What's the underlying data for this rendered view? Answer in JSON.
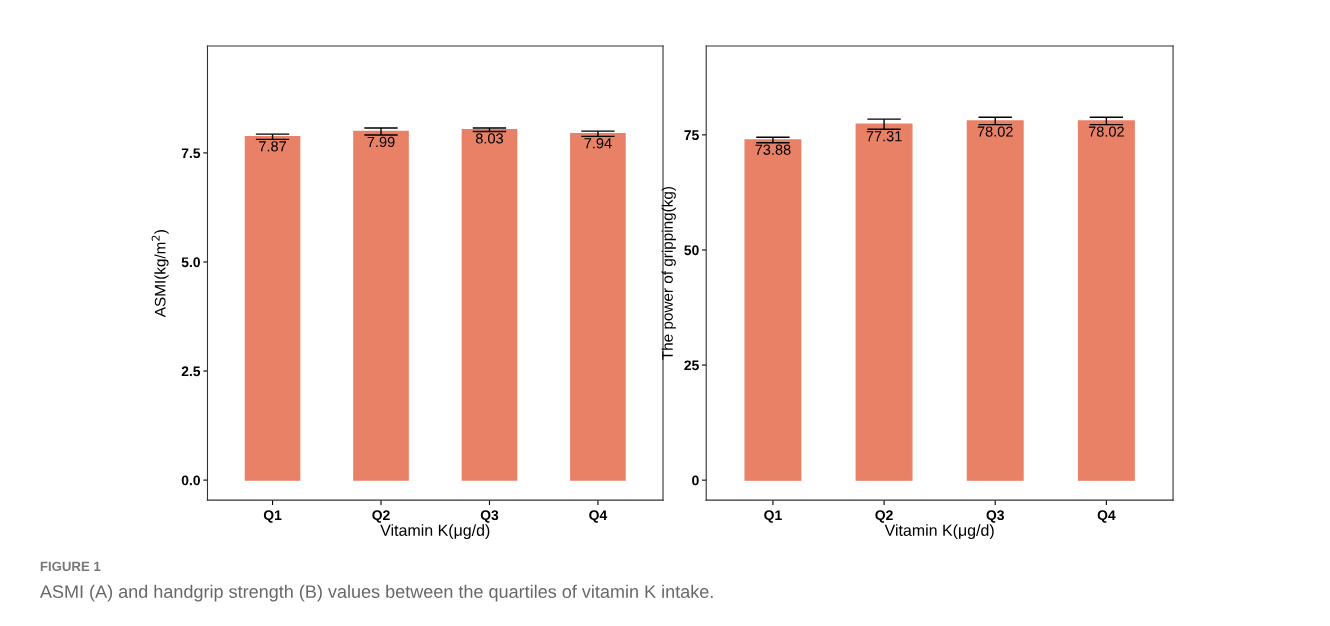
{
  "chart_data": [
    {
      "type": "bar",
      "categories": [
        "Q1",
        "Q2",
        "Q3",
        "Q4"
      ],
      "values": [
        7.87,
        7.99,
        8.03,
        7.94
      ],
      "errors": [
        0.06,
        0.08,
        0.04,
        0.06
      ],
      "color": "#e98166",
      "xlabel": "Vitamin K(μg/d)",
      "ylabel": "ASMI(kg/m$^{2}$)",
      "ylim": [
        -0.46,
        9.95
      ],
      "yticks": [
        {
          "value": 0,
          "label": "0.0"
        },
        {
          "value": 2.5,
          "label": "2.5"
        },
        {
          "value": 5,
          "label": "5.0"
        },
        {
          "value": 7.5,
          "label": "7.5"
        }
      ],
      "data_labels": true,
      "grid": false,
      "annotations": [
        "FIGURE 1",
        "ASMI (A) and handgrip strength (B) values between the quartiles of vitamin K intake."
      ]
    },
    {
      "type": "bar",
      "categories": [
        "Q1",
        "Q2",
        "Q3",
        "Q4"
      ],
      "values": [
        73.88,
        77.31,
        78.02,
        78.02
      ],
      "errors": [
        0.6,
        1.1,
        0.8,
        0.8
      ],
      "color": "#e98166",
      "xlabel": "Vitamin K(μg/d)",
      "ylabel": "The power of gripping(kg)",
      "ylim": [
        -4.35,
        94.3
      ],
      "yticks": [
        0,
        25,
        50,
        75
      ],
      "data_labels": true,
      "grid": false
    }
  ]
}
